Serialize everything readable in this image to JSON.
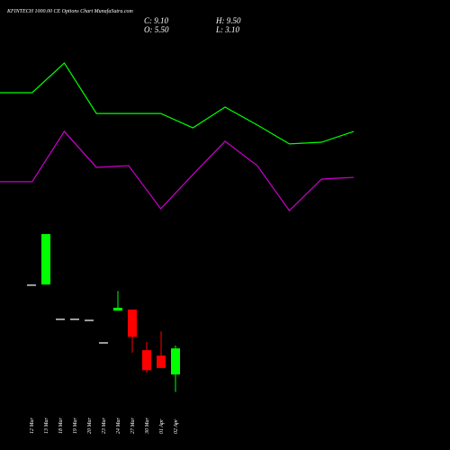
{
  "chart_data": [
    {
      "type": "line",
      "ylim": [
        0,
        100
      ],
      "series": [
        {
          "color": "#00ff00",
          "values": [
            70,
            70,
            85.7,
            59,
            59,
            59,
            51.4,
            62.4,
            52.9,
            42.9,
            43.8,
            49.5
          ]
        },
        {
          "color": "#cc00cc",
          "values": [
            22.9,
            22.9,
            49.5,
            30.5,
            31.4,
            8.6,
            26.7,
            44.3,
            31.4,
            7.6,
            24.3,
            25.2
          ]
        }
      ]
    },
    {
      "type": "candlestick",
      "title": "KFINTECH 1000.00 CE Options Chart MunafaSutra.com",
      "ohlc_labels": [
        "C: 9.10",
        "H: 9.50",
        "O: 5.50",
        "L: 3.10"
      ],
      "categories": [
        "12 Mar",
        "13 Mar",
        "18 Mar",
        "19 Mar",
        "20 Mar",
        "23 Mar",
        "24 Mar",
        "27 Mar",
        "30 Mar",
        "01 Apr",
        "02 Apr"
      ],
      "ylim": [
        1.3,
        26.1
      ],
      "up_color": "#00ff00",
      "down_color": "#ff0000",
      "flat_color": "#cccccc",
      "open": [
        17.9,
        17.9,
        13.2,
        13.2,
        13.05,
        9.95,
        14.3,
        14.45,
        8.85,
        8.1,
        5.5
      ],
      "high": [
        17.9,
        24.85,
        13.2,
        13.2,
        13.05,
        9.95,
        17.0,
        14.45,
        10.0,
        11.45,
        9.5
      ],
      "low": [
        17.9,
        17.9,
        13.2,
        13.2,
        13.05,
        9.95,
        14.3,
        8.5,
        5.75,
        6.4,
        3.1
      ],
      "close": [
        17.9,
        24.85,
        13.2,
        13.2,
        13.05,
        9.95,
        14.7,
        10.7,
        6.1,
        6.4,
        9.1
      ]
    }
  ]
}
